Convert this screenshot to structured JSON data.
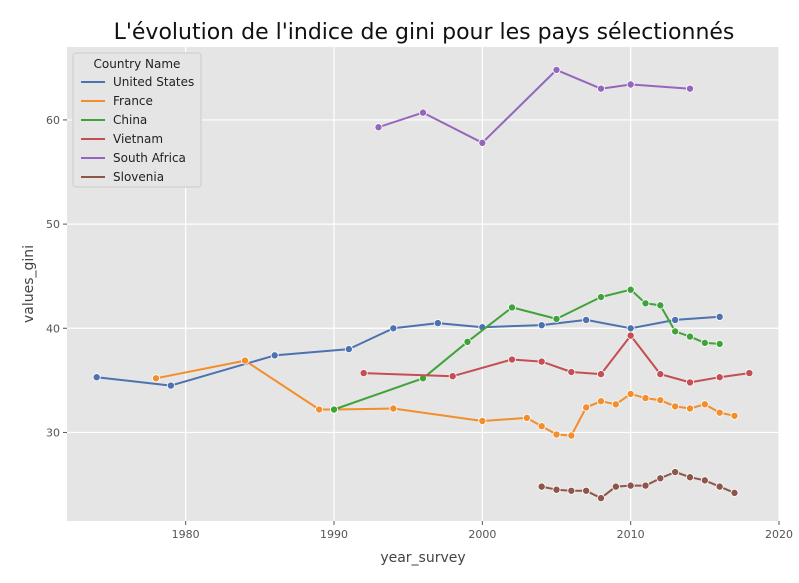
{
  "chart_data": {
    "type": "line",
    "title": "L'évolution de l'indice de gini pour les pays sélectionnés",
    "xlabel": "year_survey",
    "ylabel": "values_gini",
    "xlim": [
      1972,
      2020
    ],
    "ylim": [
      21.5,
      67
    ],
    "xticks": [
      1980,
      1990,
      2000,
      2010,
      2020
    ],
    "yticks": [
      30,
      40,
      50,
      60
    ],
    "grid": true,
    "legend": {
      "title": "Country Name",
      "position": "top-left"
    },
    "series": [
      {
        "name": "United States",
        "color": "#4c72b0",
        "x": [
          1974,
          1979,
          1986,
          1991,
          1994,
          1997,
          2000,
          2004,
          2007,
          2010,
          2013,
          2016
        ],
        "y": [
          35.3,
          34.5,
          37.4,
          38.0,
          40.0,
          40.5,
          40.1,
          40.3,
          40.8,
          40.0,
          40.8,
          41.1
        ]
      },
      {
        "name": "France",
        "color": "#f28e2b",
        "x": [
          1978,
          1984,
          1989,
          1990,
          1994,
          2000,
          2003,
          2004,
          2005,
          2006,
          2007,
          2008,
          2009,
          2010,
          2011,
          2012,
          2013,
          2014,
          2015,
          2016,
          2017
        ],
        "y": [
          35.2,
          36.9,
          32.2,
          32.2,
          32.3,
          31.1,
          31.4,
          30.6,
          29.8,
          29.7,
          32.4,
          33.0,
          32.7,
          33.7,
          33.3,
          33.1,
          32.5,
          32.3,
          32.7,
          31.9,
          31.6
        ]
      },
      {
        "name": "China",
        "color": "#3fa33a",
        "x": [
          1990,
          1996,
          1999,
          2002,
          2005,
          2008,
          2010,
          2011,
          2012,
          2013,
          2014,
          2015,
          2016
        ],
        "y": [
          32.2,
          35.2,
          38.7,
          42.0,
          40.9,
          43.0,
          43.7,
          42.4,
          42.2,
          39.7,
          39.2,
          38.6,
          38.5
        ]
      },
      {
        "name": "Vietnam",
        "color": "#c44e52",
        "x": [
          1992,
          1998,
          2002,
          2004,
          2006,
          2008,
          2010,
          2012,
          2014,
          2016,
          2018
        ],
        "y": [
          35.7,
          35.4,
          37.0,
          36.8,
          35.8,
          35.6,
          39.3,
          35.6,
          34.8,
          35.3,
          35.7
        ]
      },
      {
        "name": "South Africa",
        "color": "#9467bd",
        "x": [
          1993,
          1996,
          2000,
          2005,
          2008,
          2010,
          2014
        ],
        "y": [
          59.3,
          60.7,
          57.8,
          64.8,
          63.0,
          63.4,
          63.0
        ]
      },
      {
        "name": "Slovenia",
        "color": "#8c564b",
        "x": [
          2004,
          2005,
          2006,
          2007,
          2008,
          2009,
          2010,
          2011,
          2012,
          2013,
          2014,
          2015,
          2016,
          2017
        ],
        "y": [
          24.8,
          24.5,
          24.4,
          24.4,
          23.7,
          24.8,
          24.9,
          24.9,
          25.6,
          26.2,
          25.7,
          25.4,
          24.8,
          24.2
        ]
      }
    ]
  }
}
